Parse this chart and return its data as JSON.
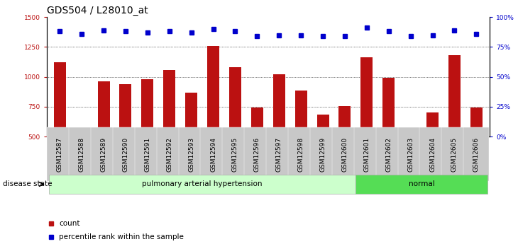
{
  "title": "GDS504 / L28010_at",
  "samples": [
    "GSM12587",
    "GSM12588",
    "GSM12589",
    "GSM12590",
    "GSM12591",
    "GSM12592",
    "GSM12593",
    "GSM12594",
    "GSM12595",
    "GSM12596",
    "GSM12597",
    "GSM12598",
    "GSM12599",
    "GSM12600",
    "GSM12601",
    "GSM12602",
    "GSM12603",
    "GSM12604",
    "GSM12605",
    "GSM12606"
  ],
  "counts": [
    1120,
    570,
    960,
    940,
    980,
    1060,
    870,
    1260,
    1080,
    745,
    1020,
    885,
    685,
    755,
    1165,
    990,
    520,
    700,
    1180,
    745
  ],
  "percentile_ranks": [
    88,
    86,
    89,
    88,
    87,
    88,
    87,
    90,
    88,
    84,
    85,
    85,
    84,
    84,
    91,
    88,
    84,
    85,
    89,
    86
  ],
  "ylim_left": [
    500,
    1500
  ],
  "ylim_right": [
    0,
    100
  ],
  "yticks_left": [
    500,
    750,
    1000,
    1250,
    1500
  ],
  "yticks_right": [
    0,
    25,
    50,
    75,
    100
  ],
  "ytick_labels_right": [
    "0%",
    "25%",
    "50%",
    "75%",
    "100%"
  ],
  "bar_color": "#bb1111",
  "dot_color": "#0000cc",
  "background_xticklabel": "#c8c8c8",
  "group1_label": "pulmonary arterial hypertension",
  "group2_label": "normal",
  "group1_color": "#ccffcc",
  "group2_color": "#55dd55",
  "group1_count": 14,
  "disease_state_label": "disease state",
  "legend_count_label": "count",
  "legend_percentile_label": "percentile rank within the sample",
  "title_fontsize": 10,
  "tick_fontsize": 6.5,
  "label_fontsize": 7.5
}
